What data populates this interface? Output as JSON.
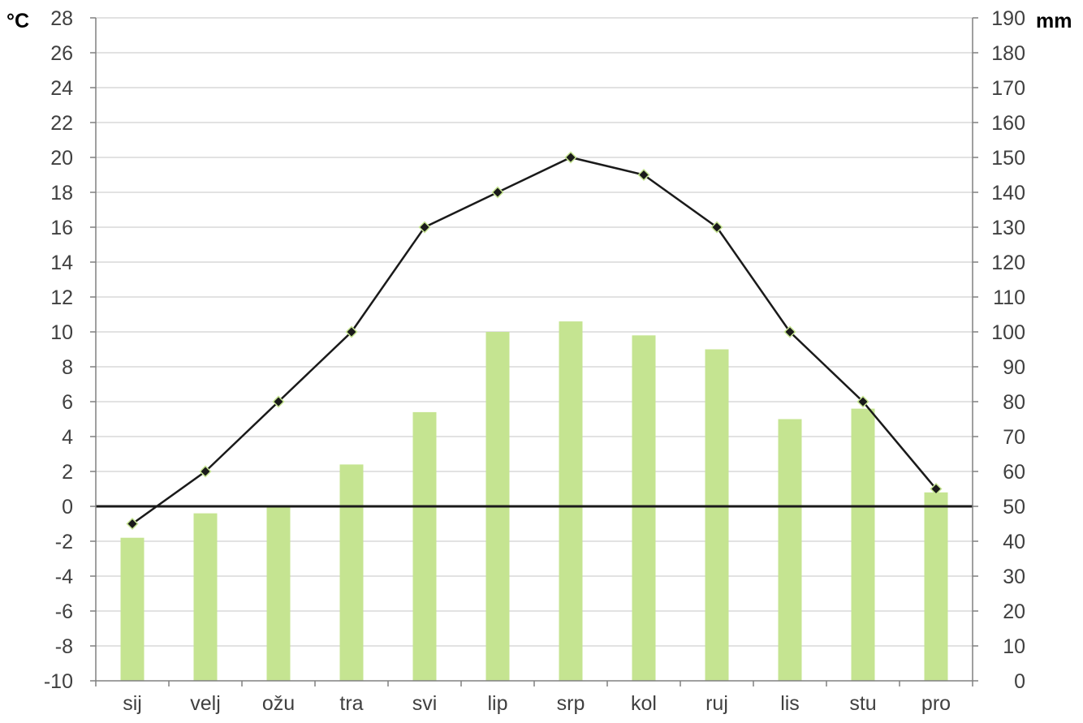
{
  "chart_data": {
    "type": "bar+line",
    "title": "",
    "categories": [
      "sij",
      "velj",
      "ožu",
      "tra",
      "svi",
      "lip",
      "srp",
      "kol",
      "ruj",
      "lis",
      "stu",
      "pro"
    ],
    "series": [
      {
        "type": "bar",
        "axis": "right",
        "values": [
          41,
          48,
          50,
          62,
          77,
          100,
          103,
          99,
          95,
          75,
          78,
          54
        ],
        "color": "#c5e491"
      },
      {
        "type": "line",
        "axis": "left",
        "values": [
          -1,
          2,
          6,
          10,
          16,
          18,
          20,
          19,
          16,
          10,
          6,
          1
        ],
        "color": "#1a1a1a",
        "marker": "diamond",
        "marker_edge_color": "#c5e491"
      }
    ],
    "y_left": {
      "unit": "°C",
      "min": -10,
      "max": 28,
      "step": 2,
      "ticks": [
        "28",
        "26",
        "24",
        "22",
        "20",
        "18",
        "16",
        "14",
        "12",
        "10",
        "8",
        "6",
        "4",
        "2",
        "0",
        "-2",
        "-4",
        "-6",
        "-8",
        "-10"
      ]
    },
    "y_right": {
      "unit": "mm",
      "min": 0,
      "max": 190,
      "step": 10,
      "ticks": [
        "190",
        "180",
        "170",
        "160",
        "150",
        "140",
        "130",
        "120",
        "110",
        "100",
        "90",
        "80",
        "70",
        "60",
        "50",
        "40",
        "30",
        "20",
        "10",
        "0"
      ]
    },
    "grid": true,
    "zero_line": true,
    "legend": "none"
  }
}
